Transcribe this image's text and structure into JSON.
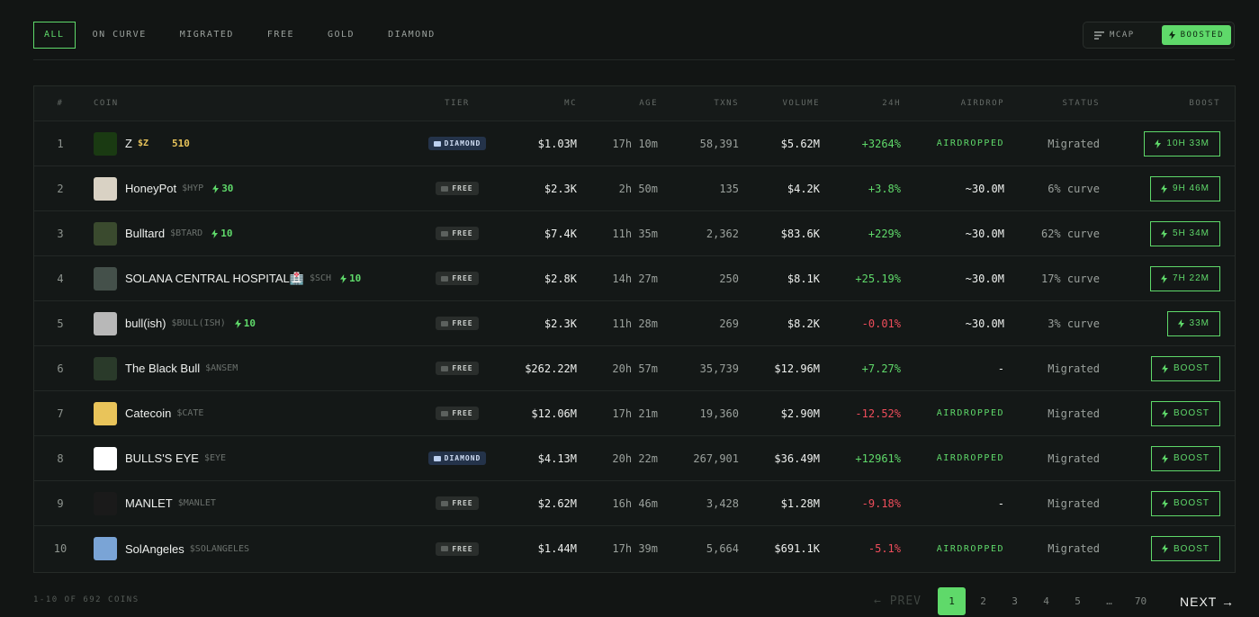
{
  "tabs": [
    "ALL",
    "ON CURVE",
    "MIGRATED",
    "FREE",
    "GOLD",
    "DIAMOND"
  ],
  "sort": {
    "mcap": "MCAP",
    "boosted": "BOOSTED"
  },
  "headers": {
    "num": "#",
    "coin": "COIN",
    "tier": "TIER",
    "mc": "MC",
    "age": "AGE",
    "txns": "TXNS",
    "volume": "VOLUME",
    "change": "24H",
    "airdrop": "AIRDROP",
    "status": "STATUS",
    "boost": "BOOST"
  },
  "rows": [
    {
      "num": "1",
      "name": "Z",
      "ticker": "$Z",
      "boost": "510",
      "tier": "DIAMOND",
      "mc": "$1.03M",
      "age": "17h 10m",
      "txns": "58,391",
      "volume": "$5.62M",
      "change": "+3264%",
      "airdrop": "AIRDROPPED",
      "status": "Migrated",
      "boost_label": "10H 33M"
    },
    {
      "num": "2",
      "name": "HoneyPot",
      "ticker": "$HYP",
      "boost": "30",
      "tier": "FREE",
      "mc": "$2.3K",
      "age": "2h 50m",
      "txns": "135",
      "volume": "$4.2K",
      "change": "+3.8%",
      "airdrop": "~30.0M",
      "status": "6% curve",
      "boost_label": "9H 46M"
    },
    {
      "num": "3",
      "name": "Bulltard",
      "ticker": "$BTARD",
      "boost": "10",
      "tier": "FREE",
      "mc": "$7.4K",
      "age": "11h 35m",
      "txns": "2,362",
      "volume": "$83.6K",
      "change": "+229%",
      "airdrop": "~30.0M",
      "status": "62% curve",
      "boost_label": "5H 34M"
    },
    {
      "num": "4",
      "name": "SOLANA CENTRAL HOSPITAL🏥",
      "ticker": "$SCH",
      "boost": "10",
      "tier": "FREE",
      "mc": "$2.8K",
      "age": "14h 27m",
      "txns": "250",
      "volume": "$8.1K",
      "change": "+25.19%",
      "airdrop": "~30.0M",
      "status": "17% curve",
      "boost_label": "7H 22M"
    },
    {
      "num": "5",
      "name": "bull(ish)",
      "ticker": "$BULL(ISH)",
      "boost": "10",
      "tier": "FREE",
      "mc": "$2.3K",
      "age": "11h 28m",
      "txns": "269",
      "volume": "$8.2K",
      "change": "-0.01%",
      "airdrop": "~30.0M",
      "status": "3% curve",
      "boost_label": "33M"
    },
    {
      "num": "6",
      "name": "The Black Bull",
      "ticker": "$ANSEM",
      "boost": "",
      "tier": "FREE",
      "mc": "$262.22M",
      "age": "20h 57m",
      "txns": "35,739",
      "volume": "$12.96M",
      "change": "+7.27%",
      "airdrop": "-",
      "status": "Migrated",
      "boost_label": "BOOST"
    },
    {
      "num": "7",
      "name": "Catecoin",
      "ticker": "$CATE",
      "boost": "",
      "tier": "FREE",
      "mc": "$12.06M",
      "age": "17h 21m",
      "txns": "19,360",
      "volume": "$2.90M",
      "change": "-12.52%",
      "airdrop": "AIRDROPPED",
      "status": "Migrated",
      "boost_label": "BOOST"
    },
    {
      "num": "8",
      "name": "BULLS'S EYE",
      "ticker": "$EYE",
      "boost": "",
      "tier": "DIAMOND",
      "mc": "$4.13M",
      "age": "20h 22m",
      "txns": "267,901",
      "volume": "$36.49M",
      "change": "+12961%",
      "airdrop": "AIRDROPPED",
      "status": "Migrated",
      "boost_label": "BOOST"
    },
    {
      "num": "9",
      "name": "MANLET",
      "ticker": "$MANLET",
      "boost": "",
      "tier": "FREE",
      "mc": "$2.62M",
      "age": "16h 46m",
      "txns": "3,428",
      "volume": "$1.28M",
      "change": "-9.18%",
      "airdrop": "-",
      "status": "Migrated",
      "boost_label": "BOOST"
    },
    {
      "num": "10",
      "name": "SolAngeles",
      "ticker": "$SOLANGELES",
      "boost": "",
      "tier": "FREE",
      "mc": "$1.44M",
      "age": "17h 39m",
      "txns": "5,664",
      "volume": "$691.1K",
      "change": "-5.1%",
      "airdrop": "AIRDROPPED",
      "status": "Migrated",
      "boost_label": "BOOST"
    }
  ],
  "coin_icon_colors": [
    "#1a3a12",
    "#d9d2c4",
    "#3a4a2e",
    "#44504a",
    "#b8b8b8",
    "#2a3a2a",
    "#e9c45a",
    "#ffffff",
    "#1a1a1a",
    "#7aa4d6"
  ],
  "footer": {
    "count": "1-10 OF 692 COINS"
  },
  "pagination": {
    "prev": "← PREV",
    "pages": [
      "1",
      "2",
      "3",
      "4",
      "5",
      "…",
      "70"
    ],
    "next": "NEXT →"
  },
  "colors": {
    "accent": "#5fd96a",
    "negative": "#ef4d5b",
    "gold": "#e6c25a",
    "diamond": "#24334a"
  }
}
